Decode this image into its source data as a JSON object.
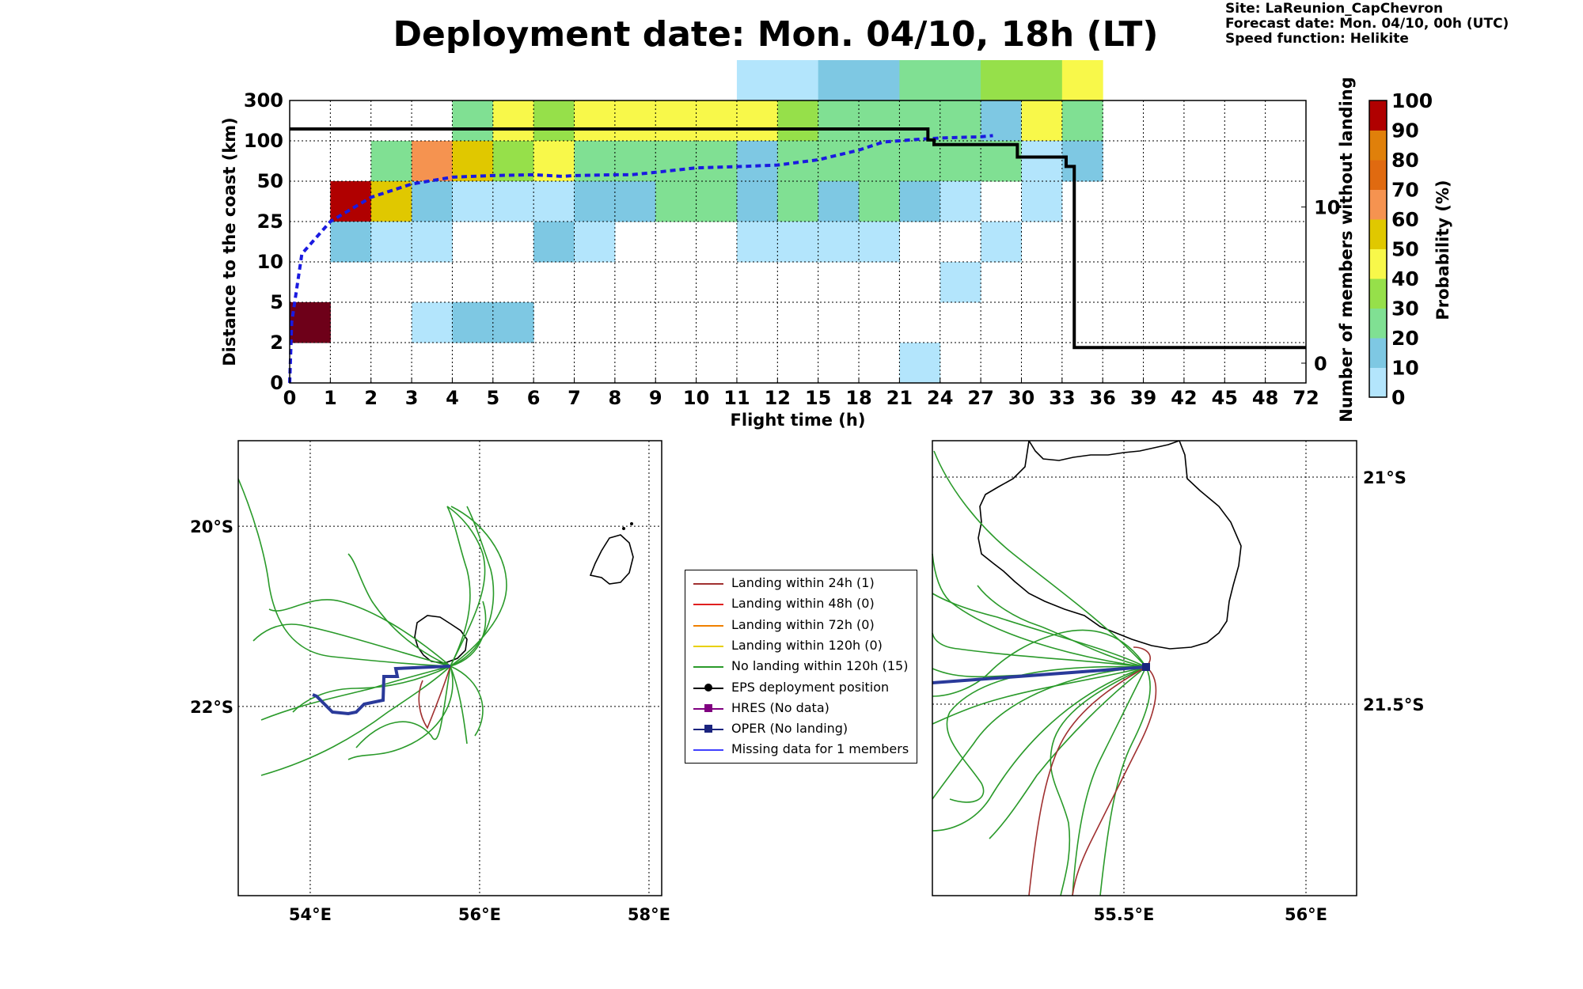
{
  "title": "Deployment date: Mon. 04/10, 18h (LT)",
  "info": {
    "site": "Site: LaReunion_CapChevron",
    "forecast": "Forecast date: Mon. 04/10, 00h (UTC)",
    "speed": "Speed function: Helikite"
  },
  "colors": {
    "0": "#b3e5fc",
    "10": "#7ec8e3",
    "20": "#80e093",
    "30": "#96e04a",
    "40": "#f8f84a",
    "50": "#e0c800",
    "60": "#f59350",
    "70": "#e06a10",
    "80": "#e0800a",
    "90": "#b00000",
    "100": "#6e0019",
    "cdf_line": "#1a1ae0",
    "members_line": "#000000",
    "track_green": "#2a9a2a",
    "track_brown": "#a03030",
    "oper": "#2a3a9a"
  },
  "chart_data": [
    {
      "type": "heatmap",
      "xlabel": "Flight time (h)",
      "ylabel": "Distance to the coast (km)",
      "y2label": "Number of members without landing",
      "colorbar_label": "Probability (%)",
      "x_ticks": [
        "0",
        "1",
        "2",
        "3",
        "4",
        "5",
        "6",
        "7",
        "8",
        "9",
        "10",
        "11",
        "12",
        "15",
        "18",
        "21",
        "24",
        "27",
        "30",
        "33",
        "36",
        "39",
        "42",
        "45",
        "48",
        "72"
      ],
      "y_ticks": [
        "0",
        "2",
        "5",
        "10",
        "25",
        "50",
        "100",
        "300"
      ],
      "y2_ticks": [
        "0",
        "10"
      ],
      "y2_range": [
        0,
        15
      ],
      "colorbar_ticks": [
        "0",
        "10",
        "20",
        "30",
        "40",
        "50",
        "60",
        "70",
        "80",
        "90",
        "100"
      ],
      "cells": [
        [
          0,
          1,
          100
        ],
        [
          1,
          4,
          90
        ],
        [
          1,
          3,
          10
        ],
        [
          2,
          5,
          20
        ],
        [
          2,
          4,
          50
        ],
        [
          2,
          3,
          0
        ],
        [
          3,
          5,
          60
        ],
        [
          3,
          4,
          10
        ],
        [
          3,
          3,
          0
        ],
        [
          3,
          1,
          0
        ],
        [
          4,
          6,
          20
        ],
        [
          4,
          5,
          50
        ],
        [
          4,
          4,
          0
        ],
        [
          4,
          1,
          10
        ],
        [
          5,
          6,
          40
        ],
        [
          5,
          5,
          30
        ],
        [
          5,
          4,
          0
        ],
        [
          5,
          1,
          10
        ],
        [
          6,
          6,
          30
        ],
        [
          6,
          5,
          40
        ],
        [
          6,
          4,
          0
        ],
        [
          6,
          3,
          10
        ],
        [
          7,
          6,
          40
        ],
        [
          7,
          5,
          20
        ],
        [
          7,
          4,
          10
        ],
        [
          7,
          3,
          0
        ],
        [
          8,
          6,
          40
        ],
        [
          8,
          5,
          20
        ],
        [
          8,
          4,
          10
        ],
        [
          9,
          6,
          40
        ],
        [
          9,
          5,
          20
        ],
        [
          9,
          4,
          20
        ],
        [
          10,
          6,
          40
        ],
        [
          10,
          5,
          20
        ],
        [
          10,
          4,
          20
        ],
        [
          11,
          7,
          0
        ],
        [
          11,
          6,
          40
        ],
        [
          11,
          5,
          10
        ],
        [
          11,
          4,
          10
        ],
        [
          11,
          3,
          0
        ],
        [
          12,
          7,
          0
        ],
        [
          12,
          6,
          30
        ],
        [
          12,
          5,
          20
        ],
        [
          12,
          4,
          20
        ],
        [
          12,
          3,
          0
        ],
        [
          13,
          7,
          10
        ],
        [
          13,
          6,
          20
        ],
        [
          13,
          5,
          20
        ],
        [
          13,
          4,
          10
        ],
        [
          13,
          3,
          0
        ],
        [
          14,
          7,
          10
        ],
        [
          14,
          6,
          20
        ],
        [
          14,
          5,
          20
        ],
        [
          14,
          4,
          20
        ],
        [
          14,
          3,
          0
        ],
        [
          15,
          7,
          20
        ],
        [
          15,
          6,
          20
        ],
        [
          15,
          5,
          20
        ],
        [
          15,
          4,
          10
        ],
        [
          15,
          0,
          0
        ],
        [
          16,
          7,
          20
        ],
        [
          16,
          6,
          20
        ],
        [
          16,
          5,
          20
        ],
        [
          16,
          4,
          0
        ],
        [
          16,
          2,
          0
        ],
        [
          17,
          7,
          30
        ],
        [
          17,
          6,
          10
        ],
        [
          17,
          5,
          20
        ],
        [
          17,
          3,
          0
        ],
        [
          18,
          7,
          30
        ],
        [
          18,
          6,
          40
        ],
        [
          18,
          5,
          0
        ],
        [
          18,
          4,
          0
        ],
        [
          19,
          7,
          40
        ],
        [
          19,
          6,
          20
        ],
        [
          19,
          5,
          10
        ]
      ],
      "cdf_line": {
        "name": "blue dashed",
        "points": [
          [
            0,
            0
          ],
          [
            0.05,
            1.5
          ],
          [
            0.3,
            3.2
          ],
          [
            1,
            4
          ],
          [
            2,
            4.6
          ],
          [
            3,
            4.93
          ],
          [
            4,
            5.1
          ],
          [
            5,
            5.14
          ],
          [
            6,
            5.16
          ],
          [
            6.7,
            5.12
          ],
          [
            7,
            5.14
          ],
          [
            8,
            5.16
          ],
          [
            8.4,
            5.16
          ],
          [
            9,
            5.22
          ],
          [
            10,
            5.33
          ],
          [
            11,
            5.36
          ],
          [
            12,
            5.4
          ],
          [
            13,
            5.53
          ],
          [
            14,
            5.77
          ],
          [
            14.6,
            5.97
          ],
          [
            15.5,
            6.04
          ],
          [
            16,
            6.07
          ],
          [
            17,
            6.1
          ],
          [
            17.3,
            6.13
          ]
        ]
      },
      "members_without_landing": [
        [
          0,
          15
        ],
        [
          15.7,
          15
        ],
        [
          15.7,
          14.3
        ],
        [
          15.85,
          14.3
        ],
        [
          15.85,
          14
        ],
        [
          17.9,
          14
        ],
        [
          17.9,
          13.2
        ],
        [
          19.1,
          13.2
        ],
        [
          19.1,
          12.6
        ],
        [
          19.3,
          12.6
        ],
        [
          19.3,
          1
        ],
        [
          25,
          1
        ]
      ]
    },
    {
      "type": "map",
      "x_ticks": [
        "54°E",
        "56°E",
        "58°E"
      ],
      "y_ticks": [
        "20°S",
        "22°S"
      ]
    },
    {
      "type": "map",
      "x_ticks": [
        "55.5°E",
        "56°E"
      ],
      "y_ticks": [
        "21°S",
        "21.5°S"
      ]
    }
  ],
  "legend": [
    {
      "label": "Landing within 24h (1)",
      "color": "#a03030",
      "marker": "none"
    },
    {
      "label": "Landing within 48h (0)",
      "color": "#e02020",
      "marker": "none"
    },
    {
      "label": "Landing within 72h (0)",
      "color": "#f08000",
      "marker": "none"
    },
    {
      "label": "Landing within 120h (0)",
      "color": "#e8d000",
      "marker": "none"
    },
    {
      "label": "No landing within 120h (15)",
      "color": "#2a9a2a",
      "marker": "none"
    },
    {
      "label": "EPS deployment position",
      "color": "#000000",
      "marker": "circle"
    },
    {
      "label": "HRES (No data)",
      "color": "#800080",
      "marker": "square"
    },
    {
      "label": "OPER (No landing)",
      "color": "#1a237e",
      "marker": "square"
    },
    {
      "label": "Missing data for 1 members",
      "color": "#4040ff",
      "marker": "none"
    }
  ]
}
